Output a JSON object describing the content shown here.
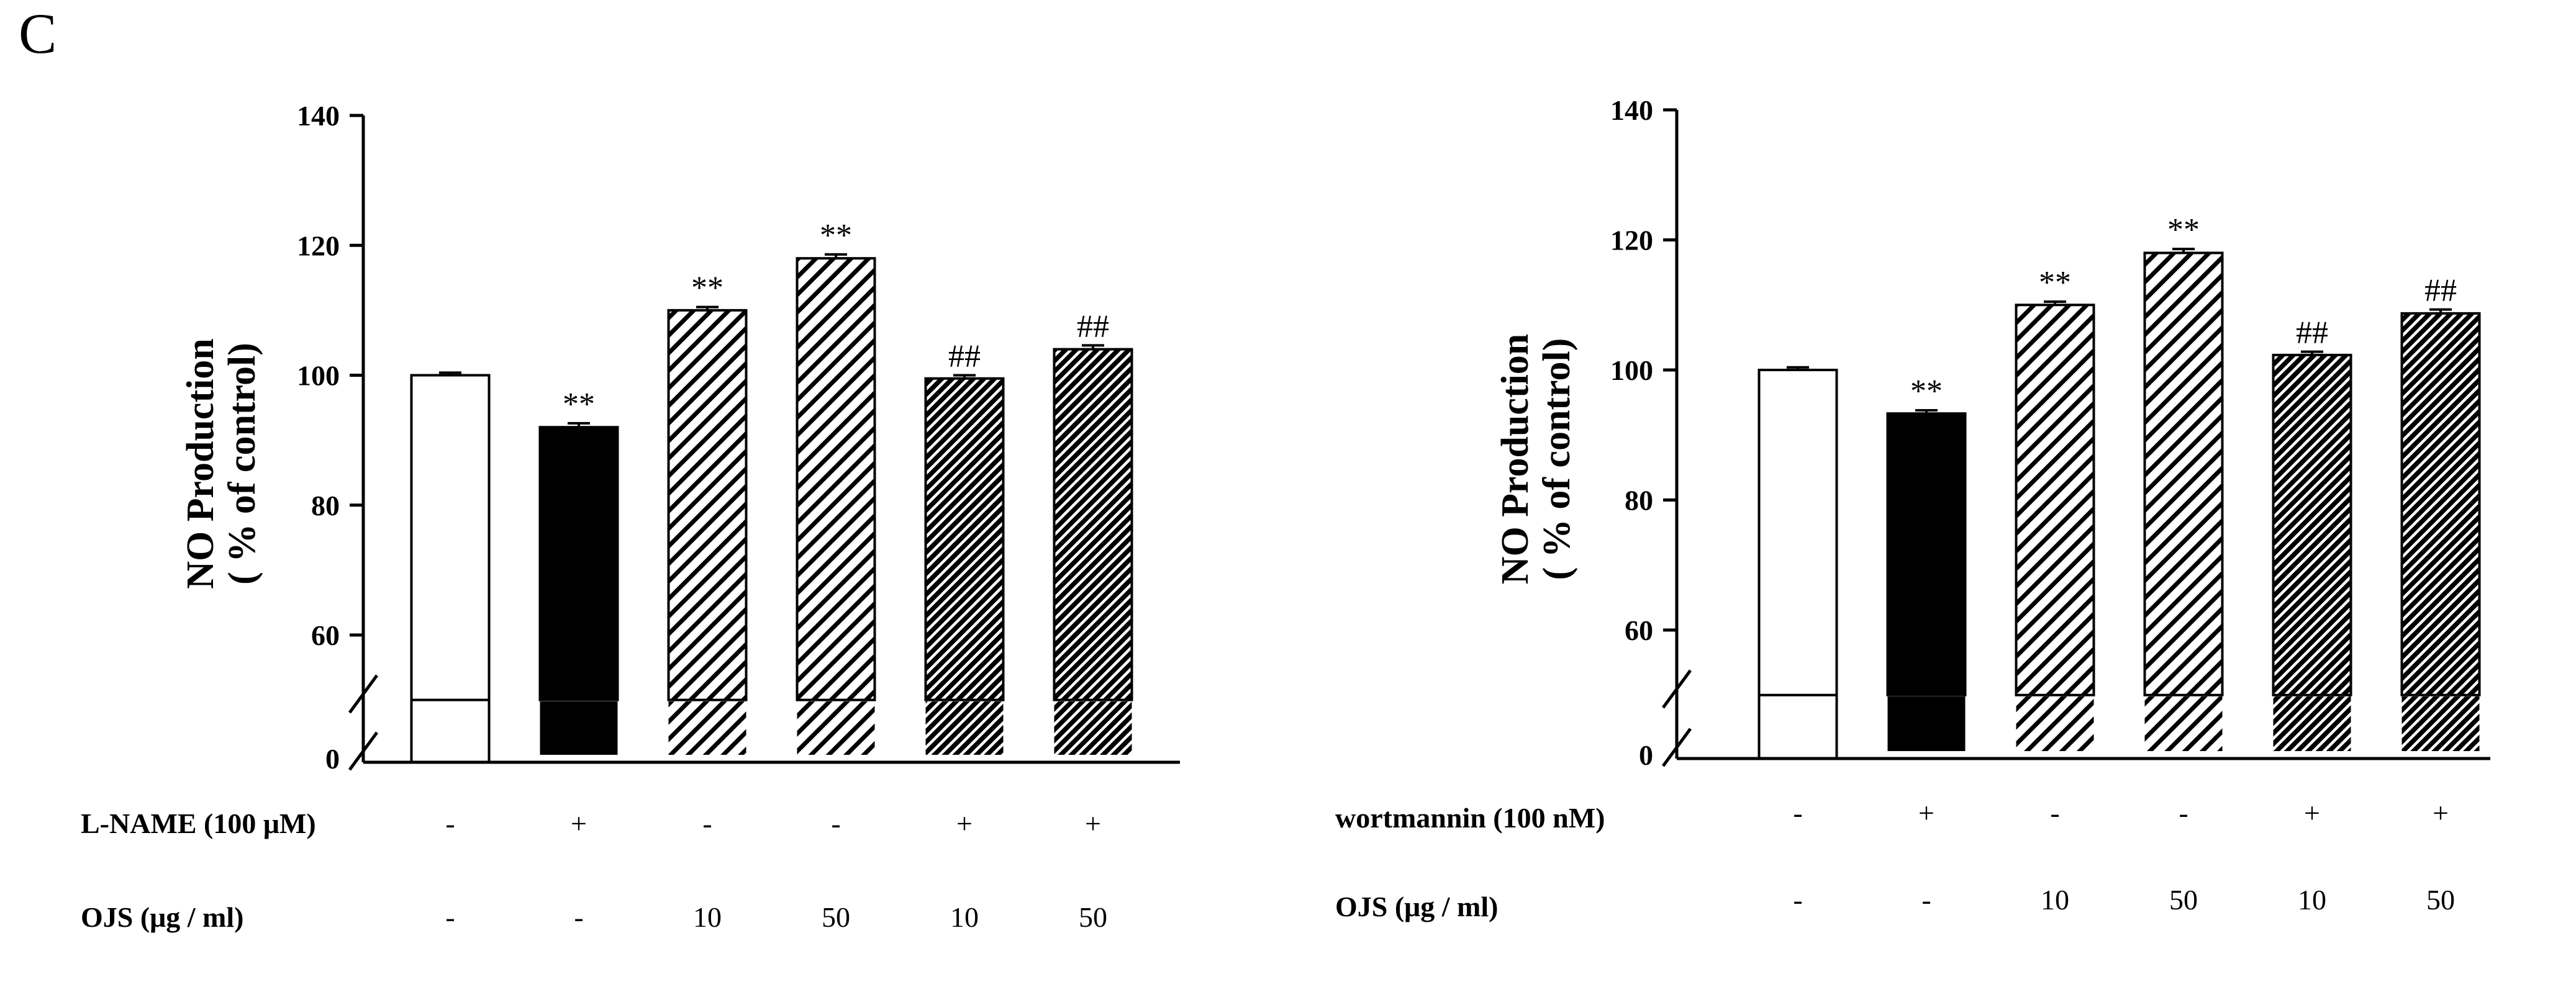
{
  "panel_label": "C",
  "chart_data": [
    {
      "type": "bar",
      "ylabel": "NO Production",
      "ylabel_sub": "( % of control)",
      "ylim": [
        50,
        140
      ],
      "yticks": [
        60,
        80,
        100,
        120,
        140
      ],
      "axis_break": true,
      "axis_break_label": "0",
      "categories": [
        "control",
        "L-NAME",
        "OJS 10",
        "OJS 50",
        "L-NAME + OJS 10",
        "L-NAME + OJS 50"
      ],
      "values": [
        100,
        92,
        110,
        118,
        99.5,
        104
      ],
      "errors": [
        0.4,
        0.6,
        0.5,
        0.6,
        0.5,
        0.6
      ],
      "fills": [
        "white",
        "black",
        "hatch",
        "hatch",
        "hatch-dense",
        "hatch-dense"
      ],
      "annotations": [
        "",
        "**",
        "**",
        "**",
        "##",
        "##"
      ],
      "conditions": [
        {
          "label": "L-NAME (100 μM)",
          "values": [
            "-",
            "+",
            "-",
            "-",
            "+",
            "+"
          ]
        },
        {
          "label": "OJS (μg / ml)",
          "values": [
            "-",
            "-",
            "10",
            "50",
            "10",
            "50"
          ]
        }
      ]
    },
    {
      "type": "bar",
      "ylabel": "NO Production",
      "ylabel_sub": "( % of control)",
      "ylim": [
        50,
        140
      ],
      "yticks": [
        60,
        80,
        100,
        120,
        140
      ],
      "axis_break": true,
      "axis_break_label": "0",
      "categories": [
        "control",
        "wortmannin",
        "OJS 10",
        "OJS 50",
        "wortmannin + OJS 10",
        "wortmannin + OJS 50"
      ],
      "values": [
        100,
        93.3,
        110,
        118,
        102.3,
        108.7
      ],
      "errors": [
        0.4,
        0.5,
        0.5,
        0.6,
        0.5,
        0.6
      ],
      "fills": [
        "white",
        "black",
        "hatch",
        "hatch",
        "hatch-dense",
        "hatch-dense"
      ],
      "annotations": [
        "",
        "**",
        "**",
        "**",
        "##",
        "##"
      ],
      "conditions": [
        {
          "label": "wortmannin (100 nM)",
          "values": [
            "-",
            "+",
            "-",
            "-",
            "+",
            "+"
          ]
        },
        {
          "label": "OJS (μg / ml)",
          "values": [
            "-",
            "-",
            "10",
            "50",
            "10",
            "50"
          ]
        }
      ]
    }
  ]
}
